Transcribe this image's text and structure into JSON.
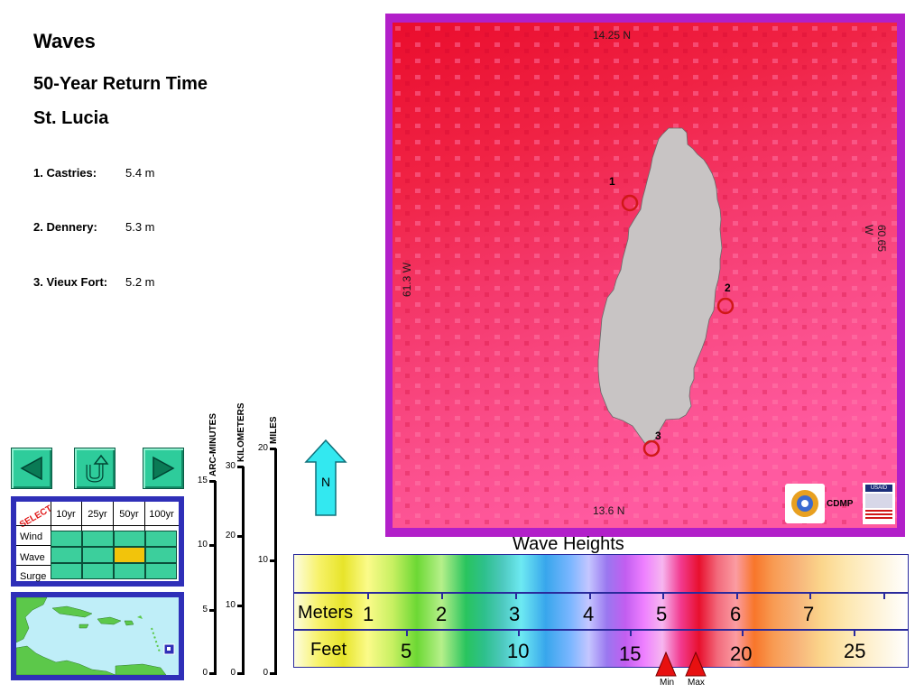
{
  "title": "Waves",
  "subtitle": "50-Year Return Time",
  "place": "St. Lucia",
  "sites": [
    {
      "label": "1. Castries:",
      "value": "5.4 m"
    },
    {
      "label": "2. Dennery:",
      "value": "5.3 m"
    },
    {
      "label": "3. Vieux Fort:",
      "value": "5.2 m"
    }
  ],
  "nav": {
    "prev_icon": "left-triangle-icon",
    "up_icon": "return-arrow-icon",
    "next_icon": "right-triangle-icon"
  },
  "selector": {
    "select_label": "SELECT",
    "columns": [
      "10yr",
      "25yr",
      "50yr",
      "100yr"
    ],
    "rows": [
      "Wind",
      "Wave",
      "Surge"
    ],
    "selected": {
      "row": 1,
      "col": 2
    }
  },
  "scales": {
    "arc_minutes": {
      "label": "ARC-MINUTES",
      "ticks": [
        "15",
        "10",
        "5",
        "0"
      ]
    },
    "kilometers": {
      "label": "KILOMETERS",
      "ticks": [
        "30",
        "20",
        "10",
        "0"
      ]
    },
    "miles": {
      "label": "MILES",
      "ticks": [
        "20",
        "10",
        "0"
      ]
    }
  },
  "north_label": "N",
  "map": {
    "top_label": "14.25 N",
    "bottom_label": "13.6 N",
    "left_label": "61.3 W",
    "right_label": "60.65 W",
    "points": [
      "1",
      "2",
      "3"
    ],
    "logo_text": "CDMP",
    "usaid_text": "USAID"
  },
  "legend": {
    "title": "Wave Heights",
    "meters_label": "Meters",
    "meters_ticks": [
      "1",
      "2",
      "3",
      "4",
      "5",
      "6",
      "7"
    ],
    "feet_label": "Feet",
    "feet_ticks": [
      "5",
      "10",
      "15",
      "20",
      "25"
    ],
    "min_label": "Min",
    "max_label": "Max"
  },
  "colors": {
    "frame": "#b21fc9",
    "sea_dark": "#e8112e",
    "sea_light": "#ff5fa0",
    "land": "#c8c4c4",
    "marker": "#d01818"
  }
}
